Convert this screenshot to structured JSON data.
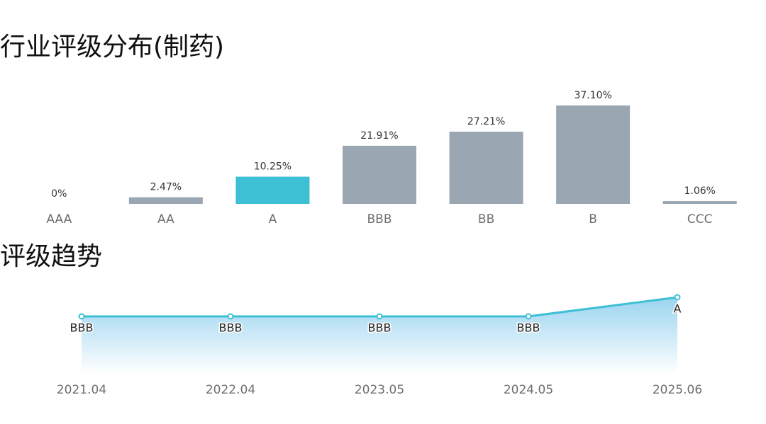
{
  "chart_data": [
    {
      "type": "bar",
      "title": "行业评级分布(制药)",
      "categories": [
        "AAA",
        "AA",
        "A",
        "BBB",
        "BB",
        "B",
        "CCC"
      ],
      "values": [
        0,
        2.47,
        10.25,
        21.91,
        27.21,
        37.1,
        1.06
      ],
      "value_labels": [
        "0%",
        "2.47%",
        "10.25%",
        "21.91%",
        "27.21%",
        "37.10%",
        "1.06%"
      ],
      "colors": [
        "#9aa7b3",
        "#9aa7b3",
        "#3dbfd4",
        "#9aa7b3",
        "#9aa7b3",
        "#9aa7b3",
        "#9aa7b3"
      ]
    },
    {
      "type": "line",
      "title": "评级趋势",
      "categories": [
        "2021.04",
        "2022.04",
        "2023.05",
        "2024.05",
        "2025.06"
      ],
      "values": [
        "BBB",
        "BBB",
        "BBB",
        "BBB",
        "A"
      ],
      "color": "#3dbfd4",
      "area_color": "#8fcfee"
    }
  ]
}
